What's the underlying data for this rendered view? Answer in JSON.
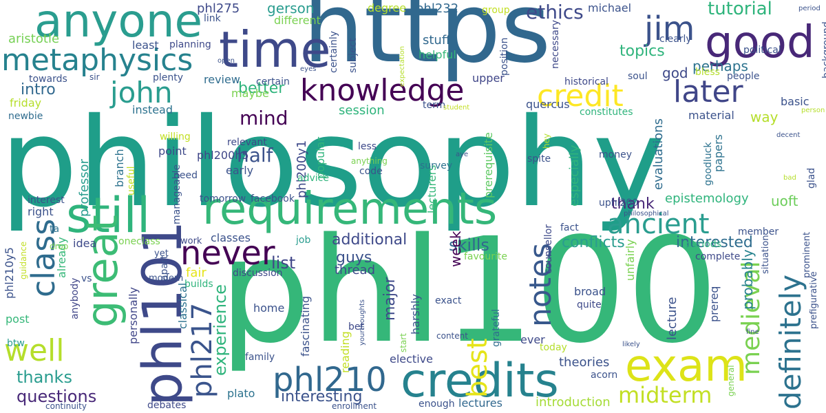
{
  "words": [
    {
      "text": "philosophy",
      "color": "#1f9e89"
    },
    {
      "text": "phl100",
      "color": "#35b779"
    },
    {
      "text": "https",
      "color": "#31688e"
    },
    {
      "text": "requirements",
      "color": "#35b779"
    },
    {
      "text": "credits",
      "color": "#26828e"
    },
    {
      "text": "anyone",
      "color": "#2a9d8f"
    },
    {
      "text": "time",
      "color": "#3e4989"
    },
    {
      "text": "good",
      "color": "#482878"
    },
    {
      "text": "still",
      "color": "#2fb47c"
    },
    {
      "text": "exam",
      "color": "#dde318"
    },
    {
      "text": "great",
      "color": "#3cbc75"
    },
    {
      "text": "phl101",
      "color": "#3e4989"
    },
    {
      "text": "metaphysics",
      "color": "#26828e"
    },
    {
      "text": "knowledge",
      "color": "#440154"
    },
    {
      "text": "credit",
      "color": "#fde725"
    },
    {
      "text": "phl210",
      "color": "#31688e"
    },
    {
      "text": "never",
      "color": "#440154"
    },
    {
      "text": "john",
      "color": "#2a9d8f"
    },
    {
      "text": "jim",
      "color": "#3b528b"
    },
    {
      "text": "notes",
      "color": "#38588c"
    },
    {
      "text": "definitely",
      "color": "#2c728e"
    },
    {
      "text": "medieval",
      "color": "#7ad151"
    },
    {
      "text": "ancient",
      "color": "#2a9d8f"
    },
    {
      "text": "later",
      "color": "#404688"
    },
    {
      "text": "class",
      "color": "#2f6c8e"
    },
    {
      "text": "well",
      "color": "#b5de2b"
    },
    {
      "text": "best",
      "color": "#e5e419"
    },
    {
      "text": "midterm",
      "color": "#c2df23"
    },
    {
      "text": "phl217",
      "color": "#3a548c"
    },
    {
      "text": "ethics",
      "color": "#3e4989"
    },
    {
      "text": "tutorial",
      "color": "#2fb47c"
    },
    {
      "text": "mind",
      "color": "#440154"
    },
    {
      "text": "half",
      "color": "#3b528b"
    },
    {
      "text": "questions",
      "color": "#482878"
    },
    {
      "text": "conflicts",
      "color": "#2a9d8f"
    },
    {
      "text": "interested",
      "color": "#2f6c8e"
    },
    {
      "text": "skills",
      "color": "#31688e"
    },
    {
      "text": "additional",
      "color": "#3e4989"
    },
    {
      "text": "experience",
      "color": "#2fb47c"
    },
    {
      "text": "thanks",
      "color": "#2a9d8f"
    },
    {
      "text": "interesting",
      "color": "#3b528b"
    },
    {
      "text": "lectures",
      "color": "#31688e"
    },
    {
      "text": "introduction",
      "color": "#a5db36"
    },
    {
      "text": "theories",
      "color": "#3b528b"
    },
    {
      "text": "major",
      "color": "#3e4989"
    },
    {
      "text": "list",
      "color": "#404688"
    },
    {
      "text": "guys",
      "color": "#3b528b"
    },
    {
      "text": "week",
      "color": "#440154"
    },
    {
      "text": "thank",
      "color": "#482878"
    },
    {
      "text": "epistemology",
      "color": "#2fb47c"
    },
    {
      "text": "probably",
      "color": "#26828e"
    },
    {
      "text": "uoft",
      "color": "#6ccd5a"
    },
    {
      "text": "topics",
      "color": "#2fb47c"
    },
    {
      "text": "god",
      "color": "#3e4989"
    },
    {
      "text": "perhaps",
      "color": "#2c728e"
    },
    {
      "text": "better",
      "color": "#2fb47c"
    },
    {
      "text": "intro",
      "color": "#31688e"
    },
    {
      "text": "aristotle",
      "color": "#75d054"
    },
    {
      "text": "gerson",
      "color": "#2a9d8f"
    },
    {
      "text": "phl275",
      "color": "#3e4989"
    },
    {
      "text": "phl232",
      "color": "#31688e"
    },
    {
      "text": "michael",
      "color": "#3b528b"
    },
    {
      "text": "stuff",
      "color": "#31688e"
    },
    {
      "text": "upper",
      "color": "#404688"
    },
    {
      "text": "different",
      "color": "#7ad151"
    },
    {
      "text": "degree",
      "color": "#b5de2b"
    },
    {
      "text": "least",
      "color": "#3b528b"
    },
    {
      "text": "planning",
      "color": "#3e4989"
    },
    {
      "text": "review",
      "color": "#2f6c8e"
    },
    {
      "text": "maybe",
      "color": "#7ad151"
    },
    {
      "text": "session",
      "color": "#2fb47c"
    },
    {
      "text": "instead",
      "color": "#2c728e"
    },
    {
      "text": "friday",
      "color": "#b5de2b"
    },
    {
      "text": "newbie",
      "color": "#2f6c8e"
    },
    {
      "text": "point",
      "color": "#3e4989"
    },
    {
      "text": "early",
      "color": "#3b528b"
    },
    {
      "text": "professor",
      "color": "#2a9d8f"
    },
    {
      "text": "branch",
      "color": "#2c728e"
    },
    {
      "text": "phl200h5",
      "color": "#404688"
    },
    {
      "text": "phl200y1",
      "color": "#3e4989"
    },
    {
      "text": "popular",
      "color": "#2fb47c"
    },
    {
      "text": "lecturers",
      "color": "#35b779"
    },
    {
      "text": "prerequisite",
      "color": "#5ec962"
    },
    {
      "text": "especially",
      "color": "#2fb47c"
    },
    {
      "text": "evaluations",
      "color": "#2f6c8e"
    },
    {
      "text": "survey",
      "color": "#2c728e"
    },
    {
      "text": "code",
      "color": "#3b528b"
    },
    {
      "text": "less",
      "color": "#3e4989"
    },
    {
      "text": "advice",
      "color": "#2fb47c"
    },
    {
      "text": "need",
      "color": "#3b528b"
    },
    {
      "text": "useful",
      "color": "#c2df23"
    },
    {
      "text": "willing",
      "color": "#c2df23"
    },
    {
      "text": "interest",
      "color": "#3b528b"
    },
    {
      "text": "right",
      "color": "#3b528b"
    },
    {
      "text": "idea",
      "color": "#3e4989"
    },
    {
      "text": "already",
      "color": "#35b779"
    },
    {
      "text": "fair",
      "color": "#e5e419"
    },
    {
      "text": "classes",
      "color": "#3b528b"
    },
    {
      "text": "job",
      "color": "#2a9d8f"
    },
    {
      "text": "work",
      "color": "#3e4989"
    },
    {
      "text": "yet",
      "color": "#3b528b"
    },
    {
      "text": "oneclass",
      "color": "#7ad151"
    },
    {
      "text": "builds",
      "color": "#2fb47c"
    },
    {
      "text": "modern",
      "color": "#3b528b"
    },
    {
      "text": "classical",
      "color": "#2c728e"
    },
    {
      "text": "personally",
      "color": "#404688"
    },
    {
      "text": "plato",
      "color": "#2c728e"
    },
    {
      "text": "anybody",
      "color": "#404688"
    },
    {
      "text": "apart",
      "color": "#3b528b"
    },
    {
      "text": "discussion",
      "color": "#3e4989"
    },
    {
      "text": "home",
      "color": "#3b528b"
    },
    {
      "text": "thread",
      "color": "#3e4989"
    },
    {
      "text": "fascinating",
      "color": "#3b528b"
    },
    {
      "text": "reading",
      "color": "#c2df23"
    },
    {
      "text": "harshly",
      "color": "#3b528b"
    },
    {
      "text": "elective",
      "color": "#3e4989"
    },
    {
      "text": "exact",
      "color": "#3b528b"
    },
    {
      "text": "ever",
      "color": "#3e4989"
    },
    {
      "text": "today",
      "color": "#b5de2b"
    },
    {
      "text": "broad",
      "color": "#3b528b"
    },
    {
      "text": "quite",
      "color": "#3e4989"
    },
    {
      "text": "acorn",
      "color": "#3b528b"
    },
    {
      "text": "lecture",
      "color": "#3b528b"
    },
    {
      "text": "prereq",
      "color": "#3b528b"
    },
    {
      "text": "unfairly",
      "color": "#7ad151"
    },
    {
      "text": "fact",
      "color": "#3b528b"
    },
    {
      "text": "counsellor",
      "color": "#3e4989"
    },
    {
      "text": "grateful",
      "color": "#2f6c8e"
    },
    {
      "text": "favourite",
      "color": "#7ad151"
    },
    {
      "text": "member",
      "color": "#3b528b"
    },
    {
      "text": "complete",
      "color": "#3e4989"
    },
    {
      "text": "periods",
      "color": "#2fb47c"
    },
    {
      "text": "phl210y5",
      "color": "#3b528b"
    },
    {
      "text": "guidance",
      "color": "#c2df23"
    },
    {
      "text": "drop",
      "color": "#7ad151"
    },
    {
      "text": "ta",
      "color": "#2c728e"
    },
    {
      "text": "post",
      "color": "#35b779"
    },
    {
      "text": "btw",
      "color": "#2a9d8f"
    },
    {
      "text": "family",
      "color": "#3b528b"
    },
    {
      "text": "debates",
      "color": "#3e4989"
    },
    {
      "text": "continuity",
      "color": "#3b528b"
    },
    {
      "text": "enrollment",
      "color": "#3b528b"
    },
    {
      "text": "enough",
      "color": "#3b528b"
    },
    {
      "text": "bet",
      "color": "#3e4989"
    },
    {
      "text": "yourthoughts",
      "color": "#3b528b"
    },
    {
      "text": "start",
      "color": "#7ad151"
    },
    {
      "text": "content",
      "color": "#3b528b"
    },
    {
      "text": "facebook",
      "color": "#3b528b"
    },
    {
      "text": "tomorrow",
      "color": "#3b528b"
    },
    {
      "text": "manageable",
      "color": "#3b528b"
    },
    {
      "text": "relevant",
      "color": "#3e4989"
    },
    {
      "text": "anything",
      "color": "#7ad151"
    },
    {
      "text": "aye",
      "color": "#3b528b"
    },
    {
      "text": "spite",
      "color": "#3b528b"
    },
    {
      "text": "money",
      "color": "#3b528b"
    },
    {
      "text": "hey",
      "color": "#b5de2b"
    },
    {
      "text": "goodluck",
      "color": "#2c728e"
    },
    {
      "text": "uphl200",
      "color": "#3b528b"
    },
    {
      "text": "papers",
      "color": "#2c728e"
    },
    {
      "text": "material",
      "color": "#3b528b"
    },
    {
      "text": "way",
      "color": "#b5de2b"
    },
    {
      "text": "basic",
      "color": "#3b528b"
    },
    {
      "text": "constitutes",
      "color": "#2fb47c"
    },
    {
      "text": "historical",
      "color": "#3e4989"
    },
    {
      "text": "quercus",
      "color": "#3b528b"
    },
    {
      "text": "soul",
      "color": "#3b528b"
    },
    {
      "text": "bless",
      "color": "#b5de2b"
    },
    {
      "text": "people",
      "color": "#3b528b"
    },
    {
      "text": "term",
      "color": "#3b528b"
    },
    {
      "text": "student",
      "color": "#c2df23"
    },
    {
      "text": "person",
      "color": "#b5de2b"
    },
    {
      "text": "decent",
      "color": "#3b528b"
    },
    {
      "text": "glad",
      "color": "#3b528b"
    },
    {
      "text": "bad",
      "color": "#b5de2b"
    },
    {
      "text": "philosophical",
      "color": "#3b528b"
    },
    {
      "text": "situation",
      "color": "#3b528b"
    },
    {
      "text": "prominent",
      "color": "#3b528b"
    },
    {
      "text": "prefigurative",
      "color": "#3b528b"
    },
    {
      "text": "general",
      "color": "#7ad151"
    },
    {
      "text": "fine",
      "color": "#3b528b"
    },
    {
      "text": "likely",
      "color": "#3b528b"
    },
    {
      "text": "subject",
      "color": "#3b528b"
    },
    {
      "text": "certainly",
      "color": "#3b528b"
    },
    {
      "text": "certain",
      "color": "#3b528b"
    },
    {
      "text": "eyes",
      "color": "#3b528b"
    },
    {
      "text": "expectation",
      "color": "#b5de2b"
    },
    {
      "text": "helpful",
      "color": "#35b779"
    },
    {
      "text": "position",
      "color": "#3b528b"
    },
    {
      "text": "necessary",
      "color": "#3e4989"
    },
    {
      "text": "group",
      "color": "#c2df23"
    },
    {
      "text": "clearly",
      "color": "#3b528b"
    },
    {
      "text": "political",
      "color": "#3b528b"
    },
    {
      "text": "background",
      "color": "#3b528b"
    },
    {
      "text": "link",
      "color": "#3b528b"
    },
    {
      "text": "open",
      "color": "#3b528b"
    },
    {
      "text": "plenty",
      "color": "#3b528b"
    },
    {
      "text": "towards",
      "color": "#3b528b"
    },
    {
      "text": "sir",
      "color": "#3b528b"
    },
    {
      "text": "period",
      "color": "#3b528b"
    },
    {
      "text": "vs",
      "color": "#3b528b"
    }
  ]
}
